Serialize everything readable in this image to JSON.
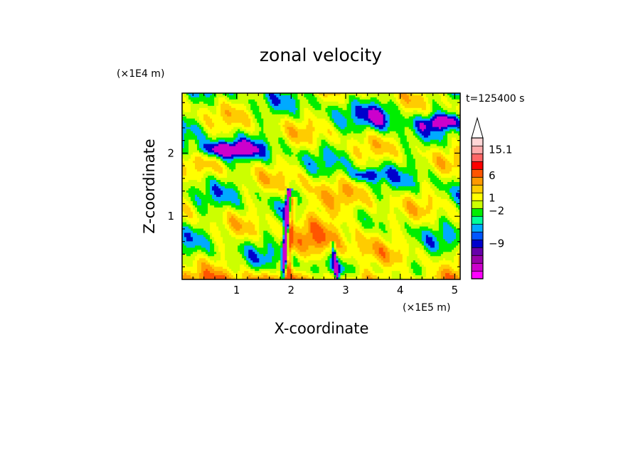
{
  "chart_data": {
    "type": "heatmap",
    "title": "zonal velocity",
    "xlabel": "X-coordinate",
    "ylabel": "Z-coordinate",
    "x_unit": "(×1E5 m)",
    "y_unit": "(×1E4 m)",
    "time_label": "t=125400 s",
    "xlim": [
      0.0,
      5.1
    ],
    "ylim": [
      0.0,
      2.95
    ],
    "x_ticks": [
      "1",
      "2",
      "3",
      "4",
      "5"
    ],
    "x_tick_values": [
      1,
      2,
      3,
      4,
      5
    ],
    "y_ticks": [
      "1",
      "2"
    ],
    "y_tick_values": [
      1,
      2
    ],
    "colorbar": {
      "levels_bottom_to_top": [
        "#ff00ff",
        "#cc00cc",
        "#9900aa",
        "#6600aa",
        "#0000cc",
        "#0055ff",
        "#00aaff",
        "#00ff99",
        "#00ee00",
        "#ccff00",
        "#ffff00",
        "#ffcc00",
        "#ff9900",
        "#ff5500",
        "#ff0000",
        "#ff6666",
        "#ffaaaa",
        "#ffd6d6"
      ],
      "labels": [
        "15.1",
        "6",
        "1",
        "−2",
        "−9"
      ],
      "label_values": [
        15.1,
        6,
        1,
        -2,
        -9
      ],
      "label_level_index": [
        16.5,
        13.2,
        10.3,
        8.7,
        4.5
      ],
      "extend_top": true
    },
    "field_colors": [
      "#cc00cc",
      "#0000cc",
      "#00aaff",
      "#00ee00",
      "#ccff00",
      "#ffff00",
      "#ffcc00",
      "#ff9900",
      "#ff5500"
    ]
  }
}
